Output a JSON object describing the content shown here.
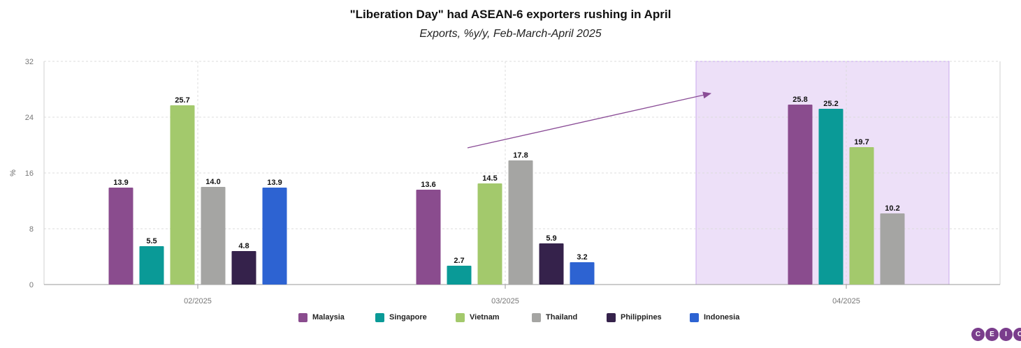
{
  "header": {
    "title": "\"Liberation Day\" had ASEAN-6 exporters rushing in April",
    "subtitle": "Exports, %y/y, Feb-March-April 2025"
  },
  "logo": {
    "letters": [
      "C",
      "E",
      "I",
      "C"
    ]
  },
  "chart_data": {
    "type": "bar",
    "title": "\"Liberation Day\" had ASEAN-6 exporters rushing in April",
    "subtitle": "Exports, %y/y, Feb-March-April 2025",
    "xlabel": "",
    "ylabel": "%",
    "ylim": [
      0,
      32
    ],
    "yticks": [
      0,
      8,
      16,
      24,
      32
    ],
    "grid": true,
    "legend_position": "bottom",
    "categories": [
      "02/2025",
      "03/2025",
      "04/2025"
    ],
    "highlight_category": "04/2025",
    "highlight_color": "#ede0f8",
    "arrow_color": "#8a4c96",
    "series": [
      {
        "name": "Malaysia",
        "color": "#8a4c8e",
        "values": [
          13.9,
          13.6,
          25.8
        ],
        "labels": [
          "13.9",
          "13.6",
          "25.8"
        ]
      },
      {
        "name": "Singapore",
        "color": "#0a9a97",
        "values": [
          5.5,
          2.7,
          25.2
        ],
        "labels": [
          "5.5",
          "2.7",
          "25.2"
        ]
      },
      {
        "name": "Vietnam",
        "color": "#a3c96c",
        "values": [
          25.7,
          14.5,
          19.7
        ],
        "labels": [
          "25.7",
          "14.5",
          "19.7"
        ]
      },
      {
        "name": "Thailand",
        "color": "#a5a5a3",
        "values": [
          14.0,
          17.8,
          10.2
        ],
        "labels": [
          "14.0",
          "17.8",
          "10.2"
        ]
      },
      {
        "name": "Philippines",
        "color": "#35224b",
        "values": [
          4.8,
          5.9,
          null
        ],
        "labels": [
          "4.8",
          "5.9",
          ""
        ]
      },
      {
        "name": "Indonesia",
        "color": "#2d63d2",
        "values": [
          13.9,
          3.2,
          null
        ],
        "labels": [
          "13.9",
          "3.2",
          ""
        ]
      }
    ]
  }
}
